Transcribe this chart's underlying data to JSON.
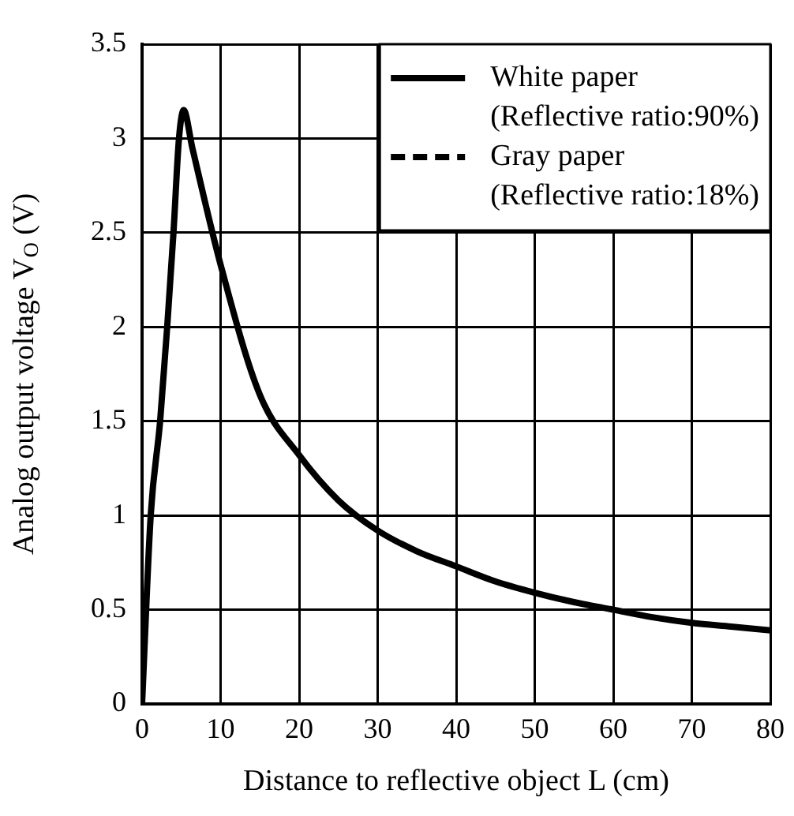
{
  "chart_data": {
    "type": "line",
    "xlabel": "Distance to reflective object L (cm)",
    "ylabel": "Analog output voltage V$_{O}$ (V)",
    "x": [
      0,
      1.1,
      2.3,
      3.2,
      4,
      4.7,
      5.3,
      6.4,
      10,
      15,
      20,
      25,
      30,
      35,
      40,
      45,
      50,
      55,
      60,
      65,
      70,
      75,
      80
    ],
    "series": [
      {
        "name": "White paper (Reflective ratio:90%)",
        "color": "#000000",
        "line_style": "solid",
        "values": [
          0,
          1,
          1.5,
          2,
          2.5,
          3,
          3.15,
          2.95,
          2.33,
          1.64,
          1.32,
          1.08,
          0.92,
          0.81,
          0.73,
          0.65,
          0.59,
          0.54,
          0.5,
          0.46,
          0.43,
          0.41,
          0.39
        ]
      },
      {
        "name": "Gray paper (Reflective ratio:18%)",
        "color": "#000000",
        "line_style": "dashed",
        "values": [
          null,
          null,
          null,
          null,
          null,
          null,
          null,
          null,
          null,
          null,
          null,
          null,
          null,
          null,
          null,
          null,
          null,
          null,
          null,
          null,
          null,
          null,
          null
        ]
      }
    ],
    "xlim": [
      0,
      80
    ],
    "xticks": [
      0,
      10,
      20,
      30,
      40,
      50,
      60,
      70,
      80
    ],
    "ylim": [
      0,
      3.5
    ],
    "yticks": [
      0,
      0.5,
      1,
      1.5,
      2,
      2.5,
      3,
      3.5
    ],
    "grid": true,
    "legend": "top right"
  }
}
